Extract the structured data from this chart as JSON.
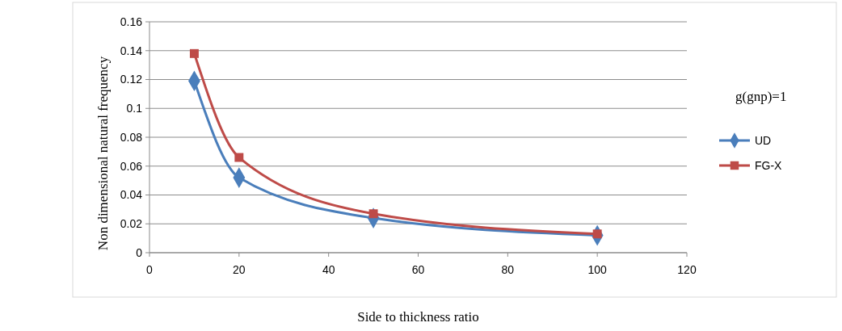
{
  "chart_data": {
    "type": "line",
    "xlabel": "Side to thickness ratio",
    "ylabel": "Non dimensional natural frequency",
    "legend_title": "g(gnp)=1",
    "x": [
      10,
      20,
      50,
      100
    ],
    "series": [
      {
        "name": "UD",
        "color": "#4a7ebb",
        "values": [
          0.119,
          0.052,
          0.024,
          0.012
        ],
        "marker": "diamond"
      },
      {
        "name": "FG-X",
        "color": "#be4b48",
        "values": [
          0.138,
          0.066,
          0.027,
          0.013
        ],
        "marker": "square"
      }
    ],
    "xlim": [
      0,
      120
    ],
    "xticks": [
      0,
      20,
      40,
      60,
      80,
      100,
      120
    ],
    "ylim": [
      0,
      0.16
    ],
    "yticks": [
      0,
      0.02,
      0.04,
      0.06,
      0.08,
      0.1,
      0.12,
      0.14,
      0.16
    ],
    "grid": "y",
    "legend": "right"
  }
}
